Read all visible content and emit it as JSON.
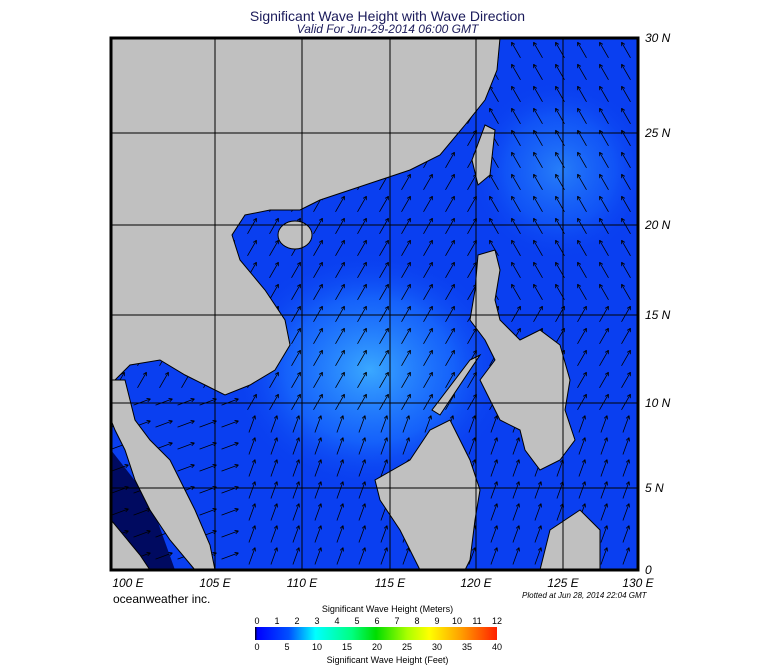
{
  "title": "Significant Wave Height with Wave Direction",
  "subtitle": "Valid For Jun-29-2014 06:00 GMT",
  "brand": "oceanweather inc.",
  "plotted": "Plotted at Jun 28, 2014 22:04 GMT",
  "lon_labels": [
    "100 E",
    "105 E",
    "110 E",
    "115 E",
    "120 E",
    "125 E",
    "130 E"
  ],
  "lat_labels": [
    "30 N",
    "25 N",
    "20 N",
    "15 N",
    "10 N",
    "5 N",
    "0"
  ],
  "colorbar": {
    "meters_title": "Significant Wave Height (Meters)",
    "feet_title": "Significant Wave Height (Feet)",
    "meters": [
      "0",
      "1",
      "2",
      "3",
      "4",
      "5",
      "6",
      "7",
      "8",
      "9",
      "10",
      "11",
      "12"
    ],
    "feet": [
      "0",
      "5",
      "10",
      "15",
      "20",
      "25",
      "30",
      "35",
      "40"
    ]
  },
  "colors": {
    "land": "#c0c0c0",
    "sea": "#0a3ff0",
    "sea_light": "#2a90ff",
    "arrow": "#000000"
  }
}
